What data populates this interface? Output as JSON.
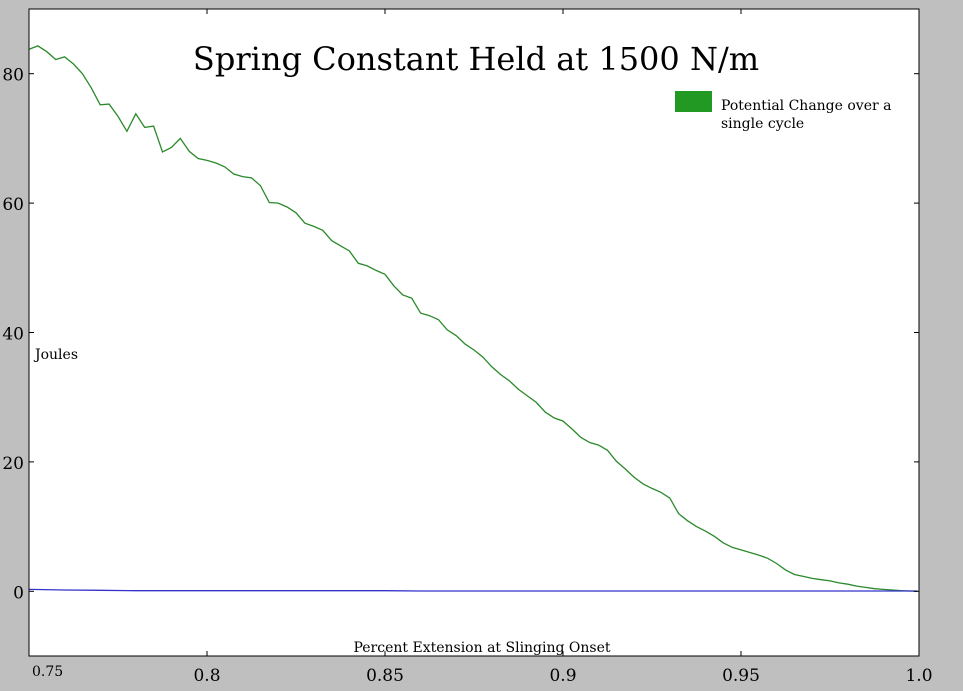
{
  "chart_data": {
    "type": "line",
    "title": "Spring Constant Held at 1500 N/m",
    "xlabel": "Percent Extension at Slinging Onset",
    "ylabel": "Joules",
    "xlim": [
      0.75,
      1.0
    ],
    "ylim": [
      -10,
      90
    ],
    "xticks": [
      0.75,
      0.8,
      0.85,
      0.9,
      0.95,
      1.0
    ],
    "xtick_labels": [
      "0.75",
      "0.8",
      "0.85",
      "0.9",
      "0.95",
      "1.0"
    ],
    "yticks": [
      0,
      20,
      40,
      60,
      80
    ],
    "ytick_labels": [
      "0",
      "20",
      "40",
      "60",
      "80"
    ],
    "grid": false,
    "legend": {
      "placement": "top-right",
      "entries": [
        "Potential Change over a single cycle"
      ]
    },
    "series": [
      {
        "name": "Potential Change over a single cycle",
        "color": "#2a8a2a",
        "x": [
          0.7501,
          0.7525,
          0.755,
          0.7575,
          0.76,
          0.7625,
          0.765,
          0.7675,
          0.77,
          0.7725,
          0.775,
          0.7775,
          0.78,
          0.7825,
          0.785,
          0.7875,
          0.79,
          0.7925,
          0.795,
          0.7975,
          0.8,
          0.8025,
          0.805,
          0.8075,
          0.81,
          0.8125,
          0.815,
          0.8175,
          0.82,
          0.8225,
          0.825,
          0.8275,
          0.83,
          0.8325,
          0.835,
          0.8375,
          0.84,
          0.8425,
          0.845,
          0.8475,
          0.85,
          0.8525,
          0.855,
          0.8575,
          0.86,
          0.8625,
          0.865,
          0.8675,
          0.87,
          0.8725,
          0.875,
          0.8775,
          0.88,
          0.8825,
          0.885,
          0.8875,
          0.89,
          0.8925,
          0.895,
          0.8975,
          0.9,
          0.9025,
          0.905,
          0.9075,
          0.91,
          0.9125,
          0.915,
          0.9175,
          0.92,
          0.9225,
          0.925,
          0.9275,
          0.93,
          0.9325,
          0.935,
          0.9375,
          0.94,
          0.9425,
          0.945,
          0.9475,
          0.95,
          0.9525,
          0.955,
          0.9575,
          0.96,
          0.9625,
          0.965,
          0.9675,
          0.97,
          0.9725,
          0.975,
          0.9775,
          0.98,
          0.9825,
          0.985,
          0.9875,
          0.99,
          0.9925,
          0.995,
          0.9975,
          0.9995
        ],
        "y": [
          83.8,
          84.3,
          83.4,
          82.2,
          82.6,
          81.5,
          80.0,
          77.8,
          75.2,
          75.3,
          73.4,
          71.1,
          73.8,
          71.7,
          71.9,
          67.9,
          68.6,
          70.0,
          68.0,
          66.9,
          66.6,
          66.2,
          65.6,
          64.5,
          64.1,
          63.9,
          62.7,
          60.1,
          60.0,
          59.4,
          58.5,
          56.9,
          56.4,
          55.8,
          54.2,
          53.4,
          52.6,
          50.7,
          50.3,
          49.6,
          49.0,
          47.2,
          45.8,
          45.3,
          43.0,
          42.6,
          42.0,
          40.4,
          39.5,
          38.2,
          37.3,
          36.2,
          34.7,
          33.5,
          32.5,
          31.2,
          30.2,
          29.2,
          27.7,
          26.8,
          26.3,
          25.1,
          23.8,
          23.0,
          22.6,
          21.8,
          20.1,
          18.9,
          17.6,
          16.6,
          15.9,
          15.3,
          14.4,
          12.0,
          10.9,
          10.0,
          9.3,
          8.5,
          7.5,
          6.8,
          6.4,
          6.0,
          5.6,
          5.1,
          4.3,
          3.3,
          2.6,
          2.3,
          2.0,
          1.8,
          1.6,
          1.3,
          1.1,
          0.8,
          0.6,
          0.4,
          0.3,
          0.2,
          0.1,
          0.05,
          0.0
        ]
      },
      {
        "color": "#3333cc",
        "x": [
          0.7501,
          0.76,
          0.77,
          0.78,
          0.79,
          0.8,
          0.81,
          0.82,
          0.83,
          0.84,
          0.85,
          0.86,
          0.87,
          0.88,
          0.89,
          0.9,
          0.91,
          0.92,
          0.93,
          0.94,
          0.95,
          0.96,
          0.97,
          0.98,
          0.99,
          0.9995
        ],
        "y": [
          0.3,
          0.2,
          0.15,
          0.1,
          0.1,
          0.1,
          0.1,
          0.1,
          0.1,
          0.1,
          0.1,
          0.05,
          0.05,
          0.05,
          0.05,
          0.05,
          0.05,
          0.05,
          0.05,
          0.05,
          0.05,
          0.05,
          0.05,
          0.05,
          0.05,
          0.05
        ]
      }
    ]
  }
}
